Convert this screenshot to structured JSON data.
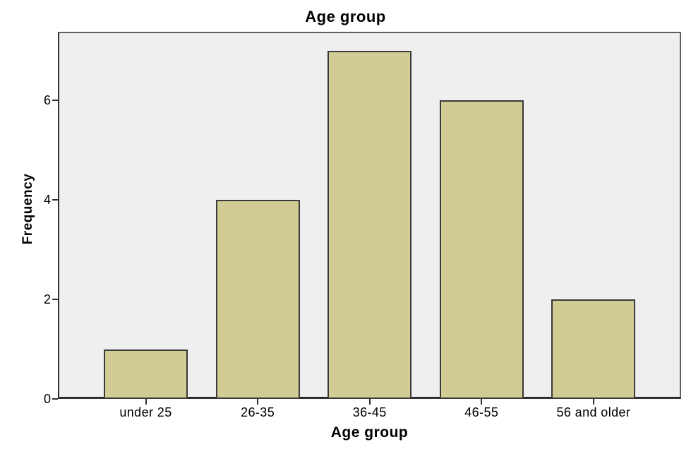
{
  "chart_data": {
    "type": "bar",
    "title": "Age group",
    "xlabel": "Age group",
    "ylabel": "Frequency",
    "categories": [
      "under 25",
      "26-35",
      "36-45",
      "46-55",
      "56 and older"
    ],
    "values": [
      1,
      4,
      7,
      6,
      2
    ],
    "yticks": [
      0,
      2,
      4,
      6
    ],
    "ylim": [
      0,
      7.38
    ],
    "grid": false,
    "legend": null,
    "colors": {
      "page_bg": "#ffffff",
      "panel_bg": "#f0eff0",
      "panel_border": "#5e5e5e",
      "axis": "#2f2f2f",
      "bar_fill": "#d1cc93",
      "bar_border": "#3a3a3a",
      "text": "#000000"
    }
  }
}
